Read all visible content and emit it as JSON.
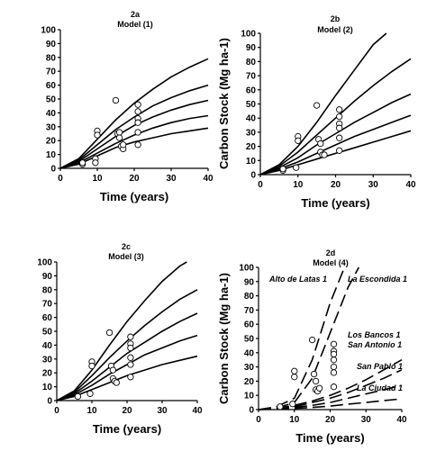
{
  "chart_data": [
    {
      "panel": "2a",
      "type": "line",
      "title": "2a",
      "subtitle": "Model (1)",
      "xlabel": "Time (years)",
      "ylabel": "Carbon Stock (Mg ha-1)",
      "xlim": [
        0,
        40
      ],
      "ylim": [
        0,
        100
      ],
      "xticks": [
        0,
        10,
        20,
        30,
        40
      ],
      "yticks": [
        0,
        10,
        20,
        30,
        40,
        50,
        60,
        70,
        80,
        90,
        100
      ],
      "grid": false,
      "legend": "none",
      "series": [
        {
          "style": "solid",
          "x": [
            0,
            5,
            10,
            15,
            20,
            25,
            30,
            35,
            40
          ],
          "y": [
            0,
            7,
            21,
            35,
            47,
            57,
            66,
            73,
            79
          ]
        },
        {
          "style": "solid",
          "x": [
            0,
            5,
            10,
            15,
            20,
            25,
            30,
            35,
            40
          ],
          "y": [
            0,
            6,
            17,
            28,
            37,
            45,
            51,
            56,
            60
          ]
        },
        {
          "style": "solid",
          "x": [
            0,
            5,
            10,
            15,
            20,
            25,
            30,
            35,
            40
          ],
          "y": [
            0,
            5,
            14,
            23,
            31,
            37,
            42,
            46,
            49
          ]
        },
        {
          "style": "solid",
          "x": [
            0,
            5,
            10,
            15,
            20,
            25,
            30,
            35,
            40
          ],
          "y": [
            0,
            4,
            11,
            18,
            24,
            29,
            33,
            36,
            38
          ]
        },
        {
          "style": "solid",
          "x": [
            0,
            5,
            10,
            15,
            20,
            25,
            30,
            35,
            40
          ],
          "y": [
            0,
            3,
            9,
            15,
            19,
            22,
            25,
            27,
            29
          ]
        }
      ],
      "observations": {
        "x": [
          6,
          6,
          9.5,
          9.5,
          10,
          10,
          15,
          15.5,
          16,
          16,
          16.5,
          17,
          17,
          21,
          21,
          21,
          21,
          21,
          21
        ],
        "y": [
          3,
          4,
          7,
          4,
          27,
          24,
          49,
          25,
          26,
          22,
          16,
          14,
          17,
          46,
          41,
          36,
          33,
          26,
          17
        ]
      }
    },
    {
      "panel": "2b",
      "type": "line",
      "title": "2b",
      "subtitle": "Model (2)",
      "xlabel": "Time (years)",
      "ylabel": "Carbon Stock (Mg ha-1)",
      "xlim": [
        0,
        40
      ],
      "ylim": [
        0,
        100
      ],
      "xticks": [
        0,
        10,
        20,
        30,
        40
      ],
      "yticks": [
        0,
        10,
        20,
        30,
        40,
        50,
        60,
        70,
        80,
        90,
        100
      ],
      "grid": false,
      "legend": "none",
      "series": [
        {
          "style": "solid",
          "x": [
            0,
            5,
            10,
            15,
            20,
            25,
            30,
            33.5
          ],
          "y": [
            0,
            7,
            20,
            37,
            56,
            74,
            92,
            100
          ]
        },
        {
          "style": "solid",
          "x": [
            0,
            5,
            10,
            15,
            20,
            25,
            30,
            35,
            40
          ],
          "y": [
            0,
            6,
            16,
            28,
            40,
            52,
            63,
            73,
            82
          ]
        },
        {
          "style": "solid",
          "x": [
            0,
            5,
            10,
            15,
            20,
            25,
            30,
            35,
            40
          ],
          "y": [
            0,
            5,
            12,
            21,
            29,
            37,
            44,
            51,
            57
          ]
        },
        {
          "style": "solid",
          "x": [
            0,
            5,
            10,
            15,
            20,
            25,
            30,
            35,
            40
          ],
          "y": [
            0,
            4,
            9,
            15,
            21,
            27,
            32,
            37,
            42
          ]
        },
        {
          "style": "solid",
          "x": [
            0,
            5,
            10,
            15,
            20,
            25,
            30,
            35,
            40
          ],
          "y": [
            0,
            3,
            7,
            11,
            15,
            19,
            23,
            27,
            31
          ]
        }
      ],
      "observations": {
        "x": [
          6,
          6,
          9.5,
          10,
          10,
          15,
          15.5,
          16,
          16,
          16.5,
          17,
          21,
          21,
          21,
          21,
          21,
          21
        ],
        "y": [
          3,
          4,
          5,
          27,
          24,
          49,
          25,
          22,
          16,
          14,
          14,
          46,
          41,
          36,
          33,
          26,
          17
        ]
      }
    },
    {
      "panel": "2c",
      "type": "line",
      "title": "2c",
      "subtitle": "Model (3)",
      "xlabel": "Time (years)",
      "ylabel": "",
      "xlim": [
        0,
        40
      ],
      "ylim": [
        0,
        100
      ],
      "xticks": [
        0,
        10,
        20,
        30,
        40
      ],
      "yticks": [
        0,
        10,
        20,
        30,
        40,
        50,
        60,
        70,
        80,
        90,
        100
      ],
      "grid": false,
      "legend": "none",
      "series": [
        {
          "style": "solid",
          "x": [
            0,
            5,
            10,
            15,
            20,
            25,
            30,
            35,
            37
          ],
          "y": [
            0,
            7,
            22,
            40,
            57,
            72,
            86,
            97,
            100
          ]
        },
        {
          "style": "solid",
          "x": [
            0,
            5,
            10,
            15,
            20,
            25,
            30,
            35,
            40
          ],
          "y": [
            0,
            6,
            18,
            31,
            43,
            54,
            64,
            73,
            80
          ]
        },
        {
          "style": "solid",
          "x": [
            0,
            5,
            10,
            15,
            20,
            25,
            30,
            35,
            40
          ],
          "y": [
            0,
            5,
            14,
            24,
            34,
            42,
            50,
            57,
            63
          ]
        },
        {
          "style": "solid",
          "x": [
            0,
            5,
            10,
            15,
            20,
            25,
            30,
            35,
            40
          ],
          "y": [
            0,
            4,
            11,
            19,
            26,
            33,
            38,
            43,
            47
          ]
        },
        {
          "style": "solid",
          "x": [
            0,
            5,
            10,
            15,
            20,
            25,
            30,
            35,
            40
          ],
          "y": [
            0,
            3,
            8,
            13,
            18,
            22,
            26,
            29,
            32
          ]
        }
      ],
      "observations": {
        "x": [
          6,
          9.5,
          10,
          10,
          15,
          15.5,
          16,
          16,
          16.5,
          17,
          21,
          21,
          21,
          21,
          21,
          21
        ],
        "y": [
          3,
          5,
          28,
          25,
          49,
          25,
          22,
          16,
          14,
          13,
          46,
          41,
          38,
          31,
          26,
          17
        ]
      }
    },
    {
      "panel": "2d",
      "type": "line",
      "title": "2d",
      "subtitle": "Model (4)",
      "xlabel": "Time (years)",
      "ylabel": "Carbon Stock (Mg ha-1)",
      "xlim": [
        0,
        40
      ],
      "ylim": [
        0,
        100
      ],
      "xticks": [
        0,
        10,
        20,
        30,
        40
      ],
      "yticks": [
        0,
        10,
        20,
        30,
        40,
        50,
        60,
        70,
        80,
        90,
        100
      ],
      "grid": false,
      "legend": "none",
      "annotations": [
        "Alto de Latas 1",
        "La Escondida 1",
        "Los Bancos 1",
        "San Antonio 1",
        "San Pablo 1",
        "La Ciudad 1"
      ],
      "series": [
        {
          "name": "Alto de Latas 1",
          "style": "dashed",
          "x": [
            0,
            5,
            10,
            15,
            20,
            24
          ],
          "y": [
            0,
            2,
            8,
            35,
            75,
            100
          ]
        },
        {
          "name": "La Escondida 1",
          "style": "dashed",
          "x": [
            0,
            5,
            10,
            15,
            20,
            25,
            28
          ],
          "y": [
            0,
            1,
            5,
            22,
            54,
            86,
            100
          ]
        },
        {
          "name": "Los Bancos 1",
          "style": "dashed",
          "x": [
            0,
            5,
            10,
            15,
            20,
            25,
            30,
            35,
            40
          ],
          "y": [
            0,
            1,
            3,
            6,
            10,
            15,
            21,
            28,
            35
          ]
        },
        {
          "name": "San Antonio 1",
          "style": "dashed",
          "x": [
            0,
            5,
            10,
            15,
            20,
            25,
            30,
            35,
            40
          ],
          "y": [
            0,
            1,
            2,
            5,
            8,
            12,
            17,
            22,
            28
          ]
        },
        {
          "name": "San Pablo 1",
          "style": "dashed",
          "x": [
            0,
            5,
            10,
            15,
            20,
            25,
            30,
            35,
            40
          ],
          "y": [
            0,
            0.5,
            1.5,
            3,
            5,
            8,
            11,
            14,
            17
          ]
        },
        {
          "name": "La Ciudad 1",
          "style": "dashed",
          "x": [
            0,
            5,
            10,
            15,
            20,
            25,
            30,
            35,
            40
          ],
          "y": [
            0,
            0.3,
            0.8,
            1.5,
            2.5,
            3.8,
            5,
            6.3,
            7.5
          ]
        }
      ],
      "observations": {
        "x": [
          6,
          9.5,
          10,
          10,
          15,
          15.5,
          16,
          16,
          16.5,
          17,
          21,
          21,
          21,
          21,
          21,
          21,
          21
        ],
        "y": [
          2,
          4,
          27,
          23,
          49,
          25,
          20,
          14,
          13,
          15,
          46,
          41,
          39,
          35,
          30,
          26,
          16
        ]
      }
    }
  ]
}
